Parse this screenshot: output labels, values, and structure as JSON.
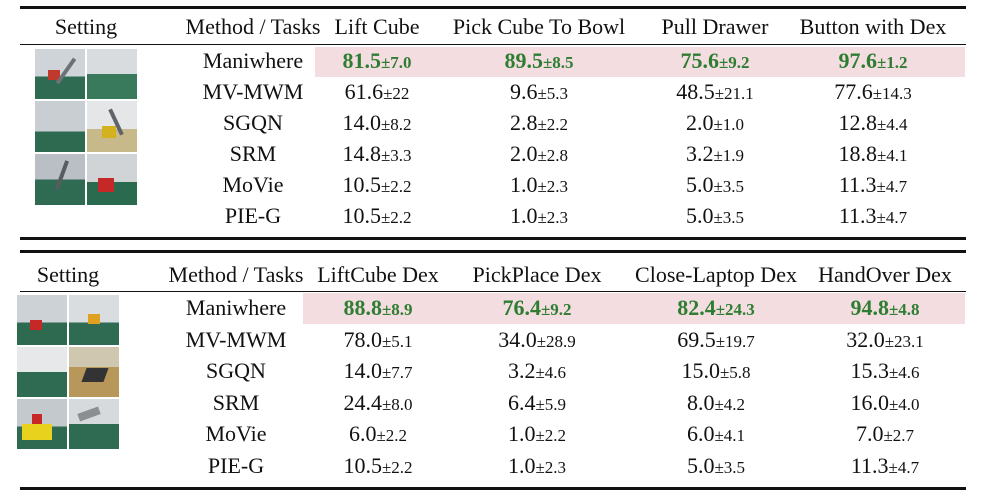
{
  "table1": {
    "headers": [
      "Setting",
      "Method / Tasks",
      "Lift Cube",
      "Pick Cube To Bowl",
      "Pull Drawer",
      "Button with Dex"
    ],
    "rows": [
      {
        "method": "Maniwhere",
        "best": true,
        "cells": [
          {
            "mean": "81.5",
            "std": "±7.0"
          },
          {
            "mean": "89.5",
            "std": "±8.5"
          },
          {
            "mean": "75.6",
            "std": "±9.2"
          },
          {
            "mean": "97.6",
            "std": "±1.2"
          }
        ]
      },
      {
        "method": "MV-MWM",
        "cells": [
          {
            "mean": "61.6",
            "std": "±22"
          },
          {
            "mean": "9.6",
            "std": "±5.3"
          },
          {
            "mean": "48.5",
            "std": "±21.1"
          },
          {
            "mean": "77.6",
            "std": "±14.3"
          }
        ]
      },
      {
        "method": "SGQN",
        "cells": [
          {
            "mean": "14.0",
            "std": "±8.2"
          },
          {
            "mean": "2.8",
            "std": "±2.2"
          },
          {
            "mean": "2.0",
            "std": "±1.0"
          },
          {
            "mean": "12.8",
            "std": "±4.4"
          }
        ]
      },
      {
        "method": "SRM",
        "cells": [
          {
            "mean": "14.8",
            "std": "±3.3"
          },
          {
            "mean": "2.0",
            "std": "±2.8"
          },
          {
            "mean": "3.2",
            "std": "±1.9"
          },
          {
            "mean": "18.8",
            "std": "±4.1"
          }
        ]
      },
      {
        "method": "MoVie",
        "cells": [
          {
            "mean": "10.5",
            "std": "±2.2"
          },
          {
            "mean": "1.0",
            "std": "±2.3"
          },
          {
            "mean": "5.0",
            "std": "±3.5"
          },
          {
            "mean": "11.3",
            "std": "±4.7"
          }
        ]
      },
      {
        "method": "PIE-G",
        "cells": [
          {
            "mean": "10.5",
            "std": "±2.2"
          },
          {
            "mean": "1.0",
            "std": "±2.3"
          },
          {
            "mean": "5.0",
            "std": "±3.5"
          },
          {
            "mean": "11.3",
            "std": "±4.7"
          }
        ]
      }
    ]
  },
  "table2": {
    "headers": [
      "Setting",
      "Method / Tasks",
      "LiftCube Dex",
      "PickPlace Dex",
      "Close-Laptop Dex",
      "HandOver Dex"
    ],
    "rows": [
      {
        "method": "Maniwhere",
        "best": true,
        "cells": [
          {
            "mean": "88.8",
            "std": "±8.9"
          },
          {
            "mean": "76.4",
            "std": "±9.2"
          },
          {
            "mean": "82.4",
            "std": "±24.3"
          },
          {
            "mean": "94.8",
            "std": "±4.8"
          }
        ]
      },
      {
        "method": "MV-MWM",
        "cells": [
          {
            "mean": "78.0",
            "std": "±5.1"
          },
          {
            "mean": "34.0",
            "std": "±28.9"
          },
          {
            "mean": "69.5",
            "std": "±19.7"
          },
          {
            "mean": "32.0",
            "std": "±23.1"
          }
        ]
      },
      {
        "method": "SGQN",
        "cells": [
          {
            "mean": "14.0",
            "std": "±7.7"
          },
          {
            "mean": "3.2",
            "std": "±4.6"
          },
          {
            "mean": "15.0",
            "std": "±5.8"
          },
          {
            "mean": "15.3",
            "std": "±4.6"
          }
        ]
      },
      {
        "method": "SRM",
        "cells": [
          {
            "mean": "24.4",
            "std": "±8.0"
          },
          {
            "mean": "6.4",
            "std": "±5.9"
          },
          {
            "mean": "8.0",
            "std": "±4.2"
          },
          {
            "mean": "16.0",
            "std": "±4.0"
          }
        ]
      },
      {
        "method": "MoVie",
        "cells": [
          {
            "mean": "6.0",
            "std": "±2.2"
          },
          {
            "mean": "1.0",
            "std": "±2.2"
          },
          {
            "mean": "6.0",
            "std": "±4.1"
          },
          {
            "mean": "7.0",
            "std": "±2.7"
          }
        ]
      },
      {
        "method": "PIE-G",
        "cells": [
          {
            "mean": "10.5",
            "std": "±2.2"
          },
          {
            "mean": "1.0",
            "std": "±2.3"
          },
          {
            "mean": "5.0",
            "std": "±3.5"
          },
          {
            "mean": "11.3",
            "std": "±4.7"
          }
        ]
      }
    ]
  },
  "colors": {
    "best_text": "#2e7d32",
    "best_row_bg": "#f4dde0",
    "table_green": "#1f5c3f"
  },
  "thumbnails": {
    "table1": "robot-arm-scenes-thumbnail",
    "table2": "dexterous-hand-scenes-thumbnail"
  }
}
